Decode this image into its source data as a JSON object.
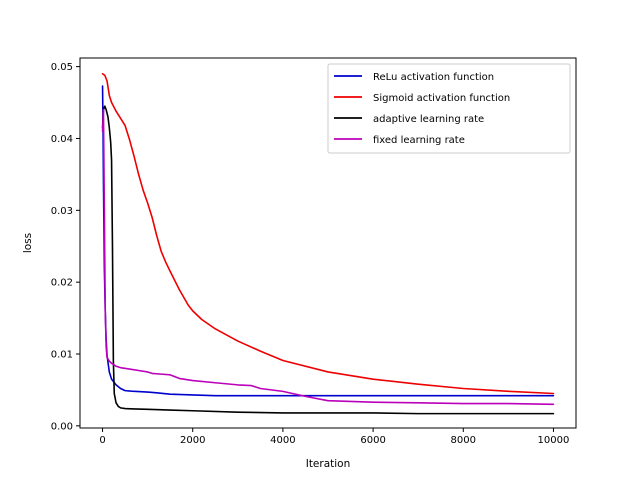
{
  "chart_data": {
    "type": "line",
    "title": "",
    "xlabel": "Iteration",
    "ylabel": "loss",
    "xlim": [
      -500,
      10500
    ],
    "ylim": [
      -0.0003,
      0.0512
    ],
    "xticks": [
      0,
      2000,
      4000,
      6000,
      8000,
      10000
    ],
    "yticks": [
      0.0,
      0.01,
      0.02,
      0.03,
      0.04,
      0.05
    ],
    "xtick_labels": [
      "0",
      "2000",
      "4000",
      "6000",
      "8000",
      "10000"
    ],
    "ytick_labels": [
      "0.00",
      "0.01",
      "0.02",
      "0.03",
      "0.04",
      "0.05"
    ],
    "grid": false,
    "legend_position": "top-right",
    "series": [
      {
        "name": "ReLu activation function",
        "color": "#0000cc",
        "x": [
          0,
          10,
          20,
          40,
          60,
          80,
          100,
          150,
          200,
          300,
          400,
          500,
          700,
          1000,
          1200,
          1500,
          2000,
          2500,
          3000,
          4000,
          5000,
          6000,
          7000,
          8000,
          9000,
          10000
        ],
        "y": [
          0.0473,
          0.042,
          0.034,
          0.022,
          0.016,
          0.012,
          0.0098,
          0.0075,
          0.0065,
          0.0057,
          0.0052,
          0.0049,
          0.0048,
          0.0047,
          0.0046,
          0.0044,
          0.0043,
          0.0042,
          0.0042,
          0.0042,
          0.0042,
          0.0042,
          0.0042,
          0.0042,
          0.0042,
          0.0042
        ]
      },
      {
        "name": "Sigmoid activation function",
        "color": "#ee0000",
        "x": [
          0,
          50,
          100,
          150,
          200,
          300,
          400,
          500,
          600,
          700,
          800,
          900,
          1000,
          1100,
          1200,
          1300,
          1400,
          1500,
          1700,
          1900,
          2000,
          2200,
          2500,
          3000,
          3500,
          4000,
          5000,
          6000,
          7000,
          8000,
          9000,
          10000
        ],
        "y": [
          0.049,
          0.0488,
          0.048,
          0.046,
          0.045,
          0.0438,
          0.0428,
          0.0418,
          0.0398,
          0.0375,
          0.035,
          0.0328,
          0.031,
          0.029,
          0.0265,
          0.0243,
          0.0228,
          0.0215,
          0.019,
          0.0168,
          0.016,
          0.0148,
          0.0135,
          0.0118,
          0.0104,
          0.0091,
          0.0075,
          0.0065,
          0.0058,
          0.0052,
          0.0048,
          0.0045
        ]
      },
      {
        "name": "adaptive learning rate",
        "color": "#000000",
        "x": [
          0,
          20,
          50,
          80,
          100,
          120,
          150,
          180,
          200,
          220,
          240,
          260,
          300,
          350,
          400,
          500,
          700,
          1000,
          1500,
          2000,
          3000,
          4000,
          5000,
          6000,
          7000,
          8000,
          9000,
          10000
        ],
        "y": [
          0.0415,
          0.044,
          0.0445,
          0.044,
          0.0435,
          0.043,
          0.0415,
          0.0395,
          0.037,
          0.025,
          0.009,
          0.0045,
          0.0032,
          0.0027,
          0.0025,
          0.0024,
          0.00235,
          0.0023,
          0.0022,
          0.0021,
          0.0019,
          0.0018,
          0.0018,
          0.0018,
          0.0017,
          0.0017,
          0.0017,
          0.0017
        ]
      },
      {
        "name": "fixed learning rate",
        "color": "#bb00bb",
        "x": [
          0,
          20,
          40,
          60,
          80,
          100,
          150,
          200,
          300,
          400,
          600,
          800,
          1000,
          1100,
          1300,
          1500,
          1700,
          2000,
          2500,
          3000,
          3300,
          3500,
          4000,
          4500,
          5000,
          6000,
          7000,
          8000,
          9000,
          10000
        ],
        "y": [
          0.041,
          0.044,
          0.03,
          0.016,
          0.011,
          0.0095,
          0.009,
          0.0087,
          0.0083,
          0.0081,
          0.0079,
          0.0077,
          0.0075,
          0.0073,
          0.0072,
          0.0071,
          0.0066,
          0.0063,
          0.006,
          0.0057,
          0.0056,
          0.0052,
          0.0048,
          0.0041,
          0.0035,
          0.0033,
          0.0032,
          0.0031,
          0.0031,
          0.003
        ]
      }
    ]
  }
}
